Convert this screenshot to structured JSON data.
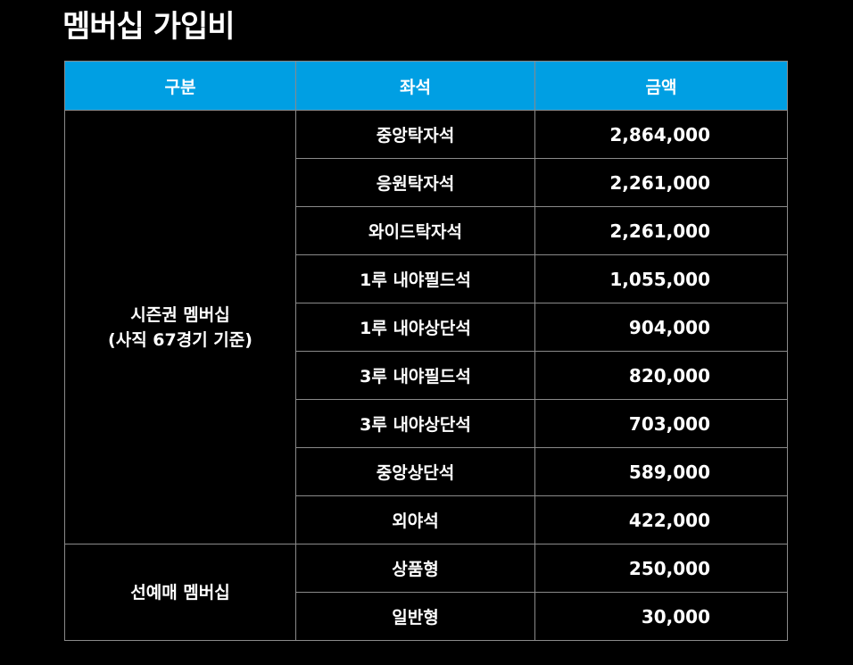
{
  "title": "멤버십 가입비",
  "table": {
    "headers": {
      "category": "구분",
      "seat": "좌석",
      "price": "금액"
    },
    "groups": [
      {
        "category_line1": "시즌권 멤버십",
        "category_line2": "(사직 67경기 기준)",
        "rows": [
          {
            "seat": "중앙탁자석",
            "price": "2,864,000"
          },
          {
            "seat": "응원탁자석",
            "price": "2,261,000"
          },
          {
            "seat": "와이드탁자석",
            "price": "2,261,000"
          },
          {
            "seat": "1루 내야필드석",
            "price": "1,055,000"
          },
          {
            "seat": "1루 내야상단석",
            "price": "904,000"
          },
          {
            "seat": "3루 내야필드석",
            "price": "820,000"
          },
          {
            "seat": "3루 내야상단석",
            "price": "703,000"
          },
          {
            "seat": "중앙상단석",
            "price": "589,000"
          },
          {
            "seat": "외야석",
            "price": "422,000"
          }
        ]
      },
      {
        "category_line1": "선예매 멤버십",
        "rows": [
          {
            "seat": "상품형",
            "price": "250,000"
          },
          {
            "seat": "일반형",
            "price": "30,000"
          }
        ]
      }
    ]
  },
  "colors": {
    "header_bg": "#009fe3",
    "background": "#000000",
    "border": "#8a8a8a",
    "text": "#ffffff"
  }
}
